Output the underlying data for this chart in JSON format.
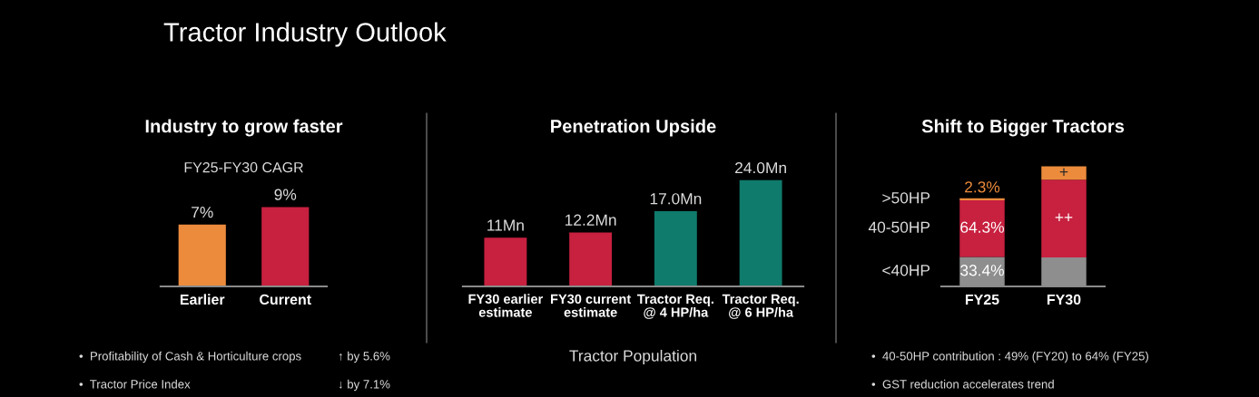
{
  "chart_data": [
    {
      "type": "other",
      "title": "Tractor Industry Outlook"
    },
    {
      "type": "bar",
      "title": "Industry to grow faster",
      "subtitle": "FY25-FY30 CAGR",
      "categories": [
        "Earlier",
        "Current"
      ],
      "values": [
        7,
        9
      ],
      "colors": [
        "#ec8b3c",
        "#c8203f"
      ],
      "value_labels": [
        "7%",
        "9%"
      ],
      "tick_labels": "x",
      "annotations": [
        "•  Profitability of Cash & Horticulture crops",
        "↑ by 5.6%",
        "•  Tractor Price Index",
        "↓ by 7.1%"
      ]
    },
    {
      "type": "bar",
      "title": "Penetration Upside",
      "xlabel": "Tractor Population",
      "categories": [
        "FY30 earlier\nestimate",
        "FY30 current\nestimate",
        "Tractor Req.\n@ 4 HP/ha",
        "Tractor Req.\n@ 6 HP/ha"
      ],
      "values": [
        11,
        12.2,
        17.0,
        24.0
      ],
      "colors": [
        "#c8203f",
        "#c8203f",
        "#0f7b6c",
        "#0f7b6c"
      ],
      "value_labels": [
        "11Mn",
        "12.2Mn",
        "17.0Mn",
        "24.0Mn"
      ],
      "tick_labels": "x"
    },
    {
      "type": "bar",
      "title": "Shift to Bigger Tractors",
      "stacked": true,
      "categories": [
        "FY25",
        "FY30"
      ],
      "series": [
        {
          "name": "<40HP",
          "color": "#8e8e8e",
          "values": [
            33.4,
            33
          ],
          "value_labels": [
            "33.4%",
            null
          ]
        },
        {
          "name": "40-50HP",
          "color": "#c8203f",
          "values": [
            64.3,
            88
          ],
          "value_labels": [
            "64.3%",
            "++"
          ]
        },
        {
          "name": ">50HP",
          "color": "#ec8b3c",
          "values": [
            2.3,
            15
          ],
          "value_labels": [
            "2.3%",
            "+"
          ]
        }
      ],
      "tick_labels": "x",
      "annotations": [
        "•  40-50HP contribution : 49% (FY20) to 64% (FY25)",
        "•  GST reduction accelerates trend"
      ]
    }
  ]
}
